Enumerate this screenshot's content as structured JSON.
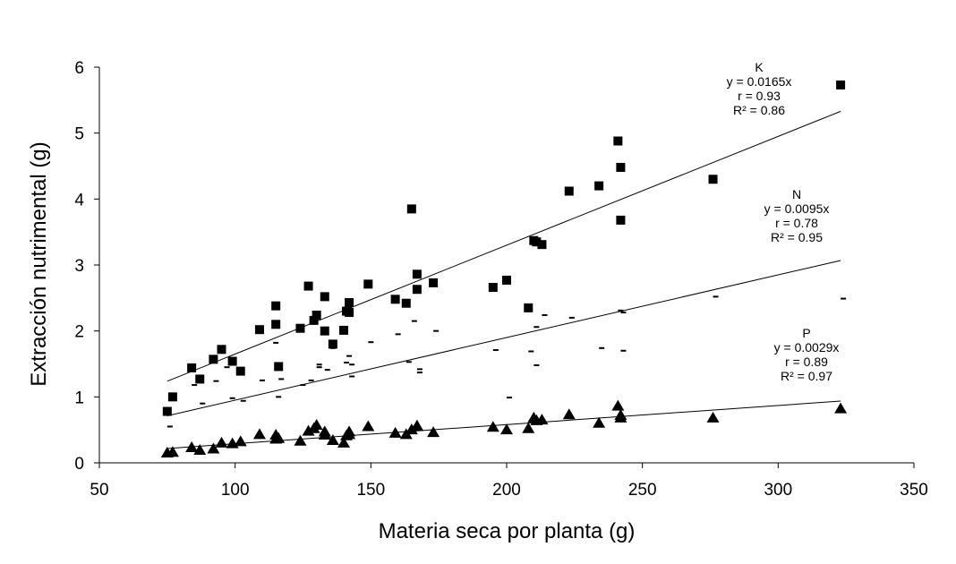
{
  "chart_data": {
    "type": "scatter",
    "title": "",
    "xlabel": "Materia seca por planta (g)",
    "ylabel": "Extracción nutrimental (g)",
    "xlim": [
      50,
      350
    ],
    "ylim": [
      0,
      6
    ],
    "xticks": [
      50,
      100,
      150,
      200,
      250,
      300,
      350
    ],
    "yticks": [
      0,
      1,
      2,
      3,
      4,
      5,
      6
    ],
    "grid": false,
    "series": [
      {
        "name": "K",
        "marker": "square",
        "slope": 0.0165,
        "fit_range": [
          75,
          323
        ],
        "annotation": [
          "K",
          "y = 0.0165x",
          "r = 0.93",
          "R² = 0.86"
        ],
        "points": [
          [
            75,
            0.78
          ],
          [
            77,
            1.0
          ],
          [
            84,
            1.44
          ],
          [
            87,
            1.27
          ],
          [
            92,
            1.57
          ],
          [
            95,
            1.72
          ],
          [
            99,
            1.54
          ],
          [
            102,
            1.39
          ],
          [
            109,
            2.02
          ],
          [
            115,
            2.38
          ],
          [
            115,
            2.1
          ],
          [
            116,
            1.46
          ],
          [
            124,
            2.04
          ],
          [
            127,
            2.68
          ],
          [
            129,
            2.16
          ],
          [
            130,
            2.24
          ],
          [
            133,
            2.52
          ],
          [
            133,
            2.0
          ],
          [
            136,
            1.8
          ],
          [
            140,
            2.01
          ],
          [
            141,
            2.3
          ],
          [
            142,
            2.43
          ],
          [
            142,
            2.28
          ],
          [
            149,
            2.71
          ],
          [
            159,
            2.48
          ],
          [
            163,
            2.42
          ],
          [
            165,
            3.85
          ],
          [
            167,
            2.63
          ],
          [
            167,
            2.86
          ],
          [
            173,
            2.73
          ],
          [
            195,
            2.66
          ],
          [
            200,
            2.77
          ],
          [
            208,
            2.35
          ],
          [
            210,
            3.37
          ],
          [
            211,
            3.35
          ],
          [
            213,
            3.31
          ],
          [
            223,
            4.12
          ],
          [
            234,
            4.2
          ],
          [
            241,
            4.88
          ],
          [
            242,
            4.48
          ],
          [
            242,
            3.68
          ],
          [
            276,
            4.3
          ],
          [
            323,
            5.73
          ]
        ]
      },
      {
        "name": "N",
        "marker": "dash",
        "slope": 0.0095,
        "fit_range": [
          75,
          323
        ],
        "annotation": [
          "N",
          "y = 0.0095x",
          "r = 0.78",
          "R² = 0.95"
        ],
        "points": [
          [
            76,
            0.55
          ],
          [
            85,
            1.18
          ],
          [
            88,
            0.9
          ],
          [
            93,
            1.24
          ],
          [
            97,
            1.45
          ],
          [
            99,
            0.98
          ],
          [
            103,
            0.94
          ],
          [
            110,
            1.25
          ],
          [
            115,
            1.82
          ],
          [
            116,
            1.0
          ],
          [
            117,
            1.27
          ],
          [
            125,
            1.18
          ],
          [
            128,
            1.25
          ],
          [
            131,
            1.45
          ],
          [
            131,
            1.49
          ],
          [
            134,
            1.41
          ],
          [
            136,
            1.74
          ],
          [
            141,
            1.52
          ],
          [
            142,
            1.62
          ],
          [
            143,
            1.31
          ],
          [
            143,
            1.49
          ],
          [
            150,
            1.83
          ],
          [
            160,
            1.95
          ],
          [
            164,
            1.53
          ],
          [
            166,
            2.15
          ],
          [
            168,
            1.37
          ],
          [
            168,
            1.42
          ],
          [
            174,
            2.0
          ],
          [
            196,
            1.71
          ],
          [
            201,
            0.99
          ],
          [
            209,
            1.69
          ],
          [
            211,
            1.48
          ],
          [
            211,
            2.06
          ],
          [
            214,
            2.24
          ],
          [
            224,
            2.2
          ],
          [
            235,
            1.74
          ],
          [
            242,
            2.31
          ],
          [
            243,
            1.7
          ],
          [
            243,
            2.28
          ],
          [
            277,
            2.52
          ],
          [
            324,
            2.49
          ]
        ]
      },
      {
        "name": "P",
        "marker": "triangle",
        "slope": 0.0029,
        "fit_range": [
          75,
          323
        ],
        "annotation": [
          "P",
          "y = 0.0029x",
          "r = 0.89",
          "R² = 0.97"
        ],
        "points": [
          [
            75,
            0.15
          ],
          [
            77,
            0.16
          ],
          [
            84,
            0.23
          ],
          [
            87,
            0.19
          ],
          [
            92,
            0.21
          ],
          [
            95,
            0.3
          ],
          [
            99,
            0.29
          ],
          [
            102,
            0.32
          ],
          [
            109,
            0.43
          ],
          [
            115,
            0.42
          ],
          [
            115,
            0.36
          ],
          [
            116,
            0.37
          ],
          [
            124,
            0.33
          ],
          [
            127,
            0.48
          ],
          [
            129,
            0.52
          ],
          [
            130,
            0.57
          ],
          [
            133,
            0.47
          ],
          [
            133,
            0.42
          ],
          [
            136,
            0.34
          ],
          [
            140,
            0.3
          ],
          [
            141,
            0.41
          ],
          [
            142,
            0.47
          ],
          [
            142,
            0.43
          ],
          [
            149,
            0.55
          ],
          [
            159,
            0.45
          ],
          [
            163,
            0.43
          ],
          [
            165,
            0.5
          ],
          [
            167,
            0.56
          ],
          [
            167,
            0.55
          ],
          [
            173,
            0.46
          ],
          [
            195,
            0.54
          ],
          [
            200,
            0.5
          ],
          [
            208,
            0.52
          ],
          [
            210,
            0.68
          ],
          [
            211,
            0.64
          ],
          [
            213,
            0.65
          ],
          [
            223,
            0.73
          ],
          [
            234,
            0.6
          ],
          [
            241,
            0.86
          ],
          [
            242,
            0.68
          ],
          [
            242,
            0.72
          ],
          [
            276,
            0.68
          ],
          [
            323,
            0.82
          ]
        ]
      }
    ]
  }
}
